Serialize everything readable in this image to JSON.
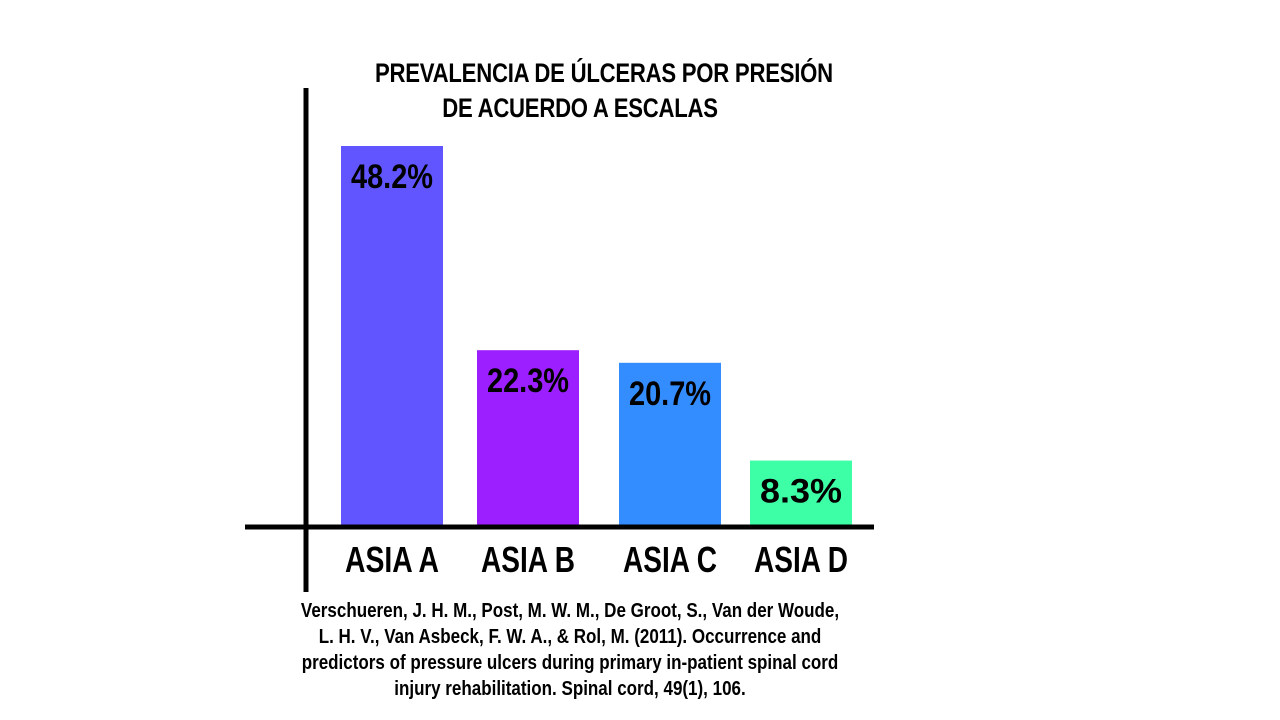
{
  "chart_data": {
    "type": "bar",
    "title_lines": [
      "PREVALENCIA DE ÚLCERAS POR PRESIÓN",
      "DE ACUERDO A ESCALAS"
    ],
    "categories": [
      "ASIA A",
      "ASIA B",
      "ASIA C",
      "ASIA D"
    ],
    "values": [
      48.2,
      22.3,
      20.7,
      8.3
    ],
    "value_labels": [
      "48.2%",
      "22.3%",
      "20.7%",
      "8.3%"
    ],
    "colors": [
      "#6155FF",
      "#9B1FFF",
      "#348DFF",
      "#3DFFA5"
    ],
    "ylim": [
      0,
      50
    ],
    "grid": false,
    "xlabel": "",
    "ylabel": ""
  },
  "citation": "Verschueren, J. H. M., Post, M. W. M., De Groot, S., Van der Woude, L. H. V., Van Asbeck, F. W. A., & Rol, M. (2011). Occurrence and predictors of pressure ulcers during primary in-patient spinal cord injury rehabilitation. Spinal cord, 49(1), 106."
}
